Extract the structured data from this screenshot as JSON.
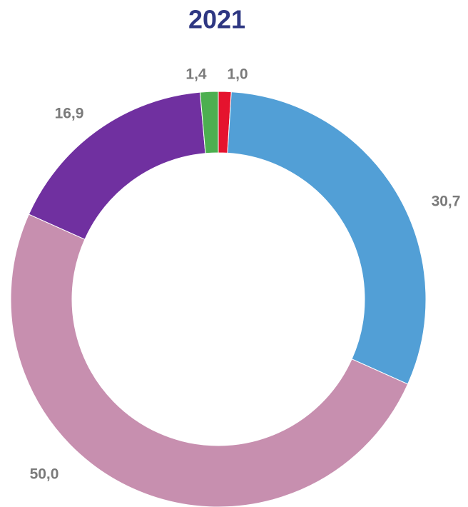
{
  "chart_data": {
    "type": "donut",
    "title": "2021",
    "categories": [
      null,
      null,
      null,
      null,
      null
    ],
    "values": [
      1.0,
      30.7,
      50.0,
      16.9,
      1.4
    ],
    "value_labels": [
      "1,0",
      "30,7",
      "50,0",
      "16,9",
      "1,4"
    ],
    "colors": [
      "#e5132e",
      "#529fd6",
      "#c78faf",
      "#7030a0",
      "#4caf50"
    ]
  }
}
